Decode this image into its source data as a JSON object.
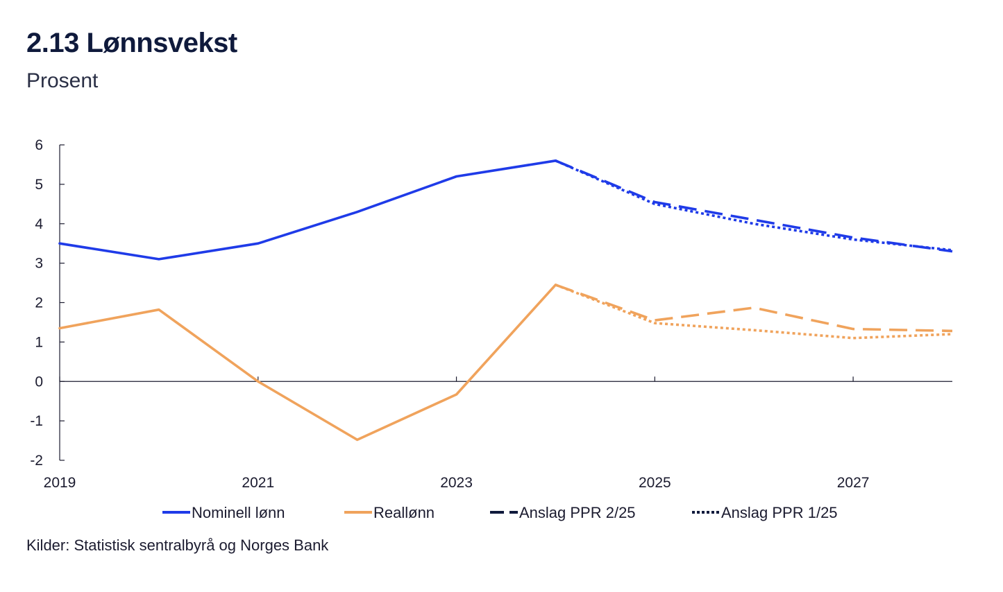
{
  "header": {
    "title": "2.13 Lønnsvekst",
    "subtitle": "Prosent"
  },
  "footer": {
    "source": "Kilder: Statistisk sentralbyrå og Norges Bank"
  },
  "chart_data": {
    "type": "line",
    "title": "2.13 Lønnsvekst",
    "ylabel": "Prosent",
    "xlim": [
      2019,
      2028
    ],
    "ylim": [
      -2,
      6
    ],
    "x_ticks": [
      2019,
      2021,
      2023,
      2025,
      2027
    ],
    "y_ticks": [
      -2,
      -1,
      0,
      1,
      2,
      3,
      4,
      5,
      6
    ],
    "series": [
      {
        "name": "Nominell lønn",
        "color": "#1f3be8",
        "style": "solid",
        "x": [
          2019,
          2020,
          2021,
          2022,
          2023,
          2024
        ],
        "values": [
          3.5,
          3.1,
          3.5,
          4.3,
          5.2,
          5.6
        ]
      },
      {
        "name": "Reallønn",
        "color": "#f0a35c",
        "style": "solid",
        "x": [
          2019,
          2020,
          2021,
          2022,
          2023,
          2024
        ],
        "values": [
          1.35,
          1.82,
          0.0,
          -1.48,
          -0.33,
          2.45
        ]
      },
      {
        "name": "Nominell lønn – Anslag PPR 2/25",
        "color": "#1f3be8",
        "style": "dashed",
        "x": [
          2024,
          2025,
          2026,
          2027,
          2028
        ],
        "values": [
          5.6,
          4.55,
          4.1,
          3.65,
          3.3
        ]
      },
      {
        "name": "Nominell lønn – Anslag PPR 1/25",
        "color": "#1f3be8",
        "style": "dotted",
        "x": [
          2024,
          2025,
          2026,
          2027,
          2028
        ],
        "values": [
          5.6,
          4.5,
          4.0,
          3.6,
          3.33
        ]
      },
      {
        "name": "Reallønn – Anslag PPR 2/25",
        "color": "#f0a35c",
        "style": "dashed",
        "x": [
          2024,
          2025,
          2026,
          2027,
          2028
        ],
        "values": [
          2.45,
          1.55,
          1.87,
          1.33,
          1.28
        ]
      },
      {
        "name": "Reallønn – Anslag PPR 1/25",
        "color": "#f0a35c",
        "style": "dotted",
        "x": [
          2024,
          2025,
          2026,
          2027,
          2028
        ],
        "values": [
          2.45,
          1.48,
          1.3,
          1.1,
          1.2
        ]
      }
    ],
    "legend": [
      {
        "label": "Nominell lønn",
        "color": "#1f3be8",
        "style": "solid"
      },
      {
        "label": "Reallønn",
        "color": "#f0a35c",
        "style": "solid"
      },
      {
        "label": "Anslag PPR 2/25",
        "color": "#0f1a3c",
        "style": "dashed"
      },
      {
        "label": "Anslag PPR 1/25",
        "color": "#0f1a3c",
        "style": "dotted"
      }
    ],
    "legend_position": "bottom",
    "grid": false
  }
}
